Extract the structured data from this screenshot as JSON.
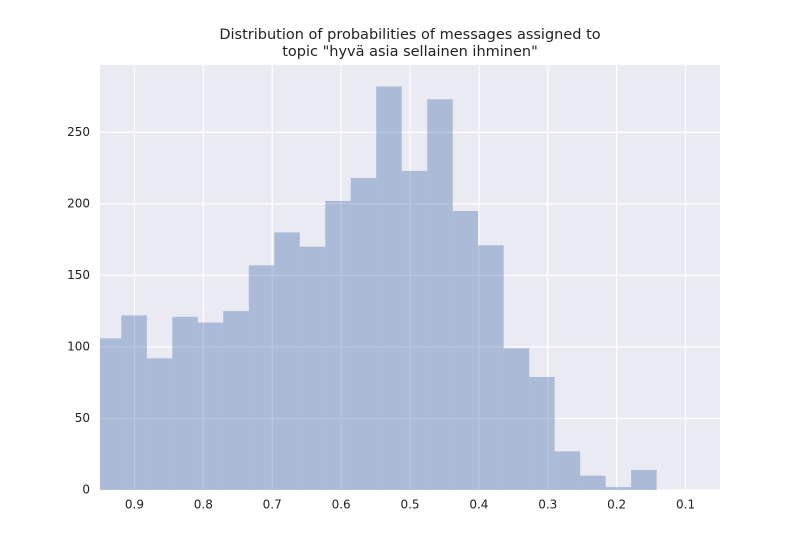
{
  "chart_data": {
    "type": "histogram",
    "title": [
      "Distribution of probabilities of messages assigned to",
      "topic \"hyvä asia sellainen ihminen\""
    ],
    "bins": [
      0.142,
      0.179,
      0.216,
      0.253,
      0.29,
      0.327,
      0.364,
      0.401,
      0.438,
      0.475,
      0.512,
      0.549,
      0.586,
      0.623,
      0.66,
      0.697,
      0.734,
      0.771,
      0.808,
      0.845,
      0.882,
      0.919,
      0.956
    ],
    "counts": [
      14,
      2,
      10,
      27,
      79,
      99,
      171,
      195,
      273,
      223,
      282,
      218,
      202,
      170,
      180,
      157,
      125,
      117,
      121,
      92,
      122,
      106
    ],
    "color": "#4c72b0",
    "xlim": [
      0.95,
      0.05
    ],
    "xticks": [
      0.9,
      0.8,
      0.7,
      0.6,
      0.5,
      0.4,
      0.3,
      0.2,
      0.1
    ],
    "ylim": [
      0,
      297
    ],
    "yticks": [
      0,
      50,
      100,
      150,
      200,
      250
    ],
    "grid": true
  }
}
